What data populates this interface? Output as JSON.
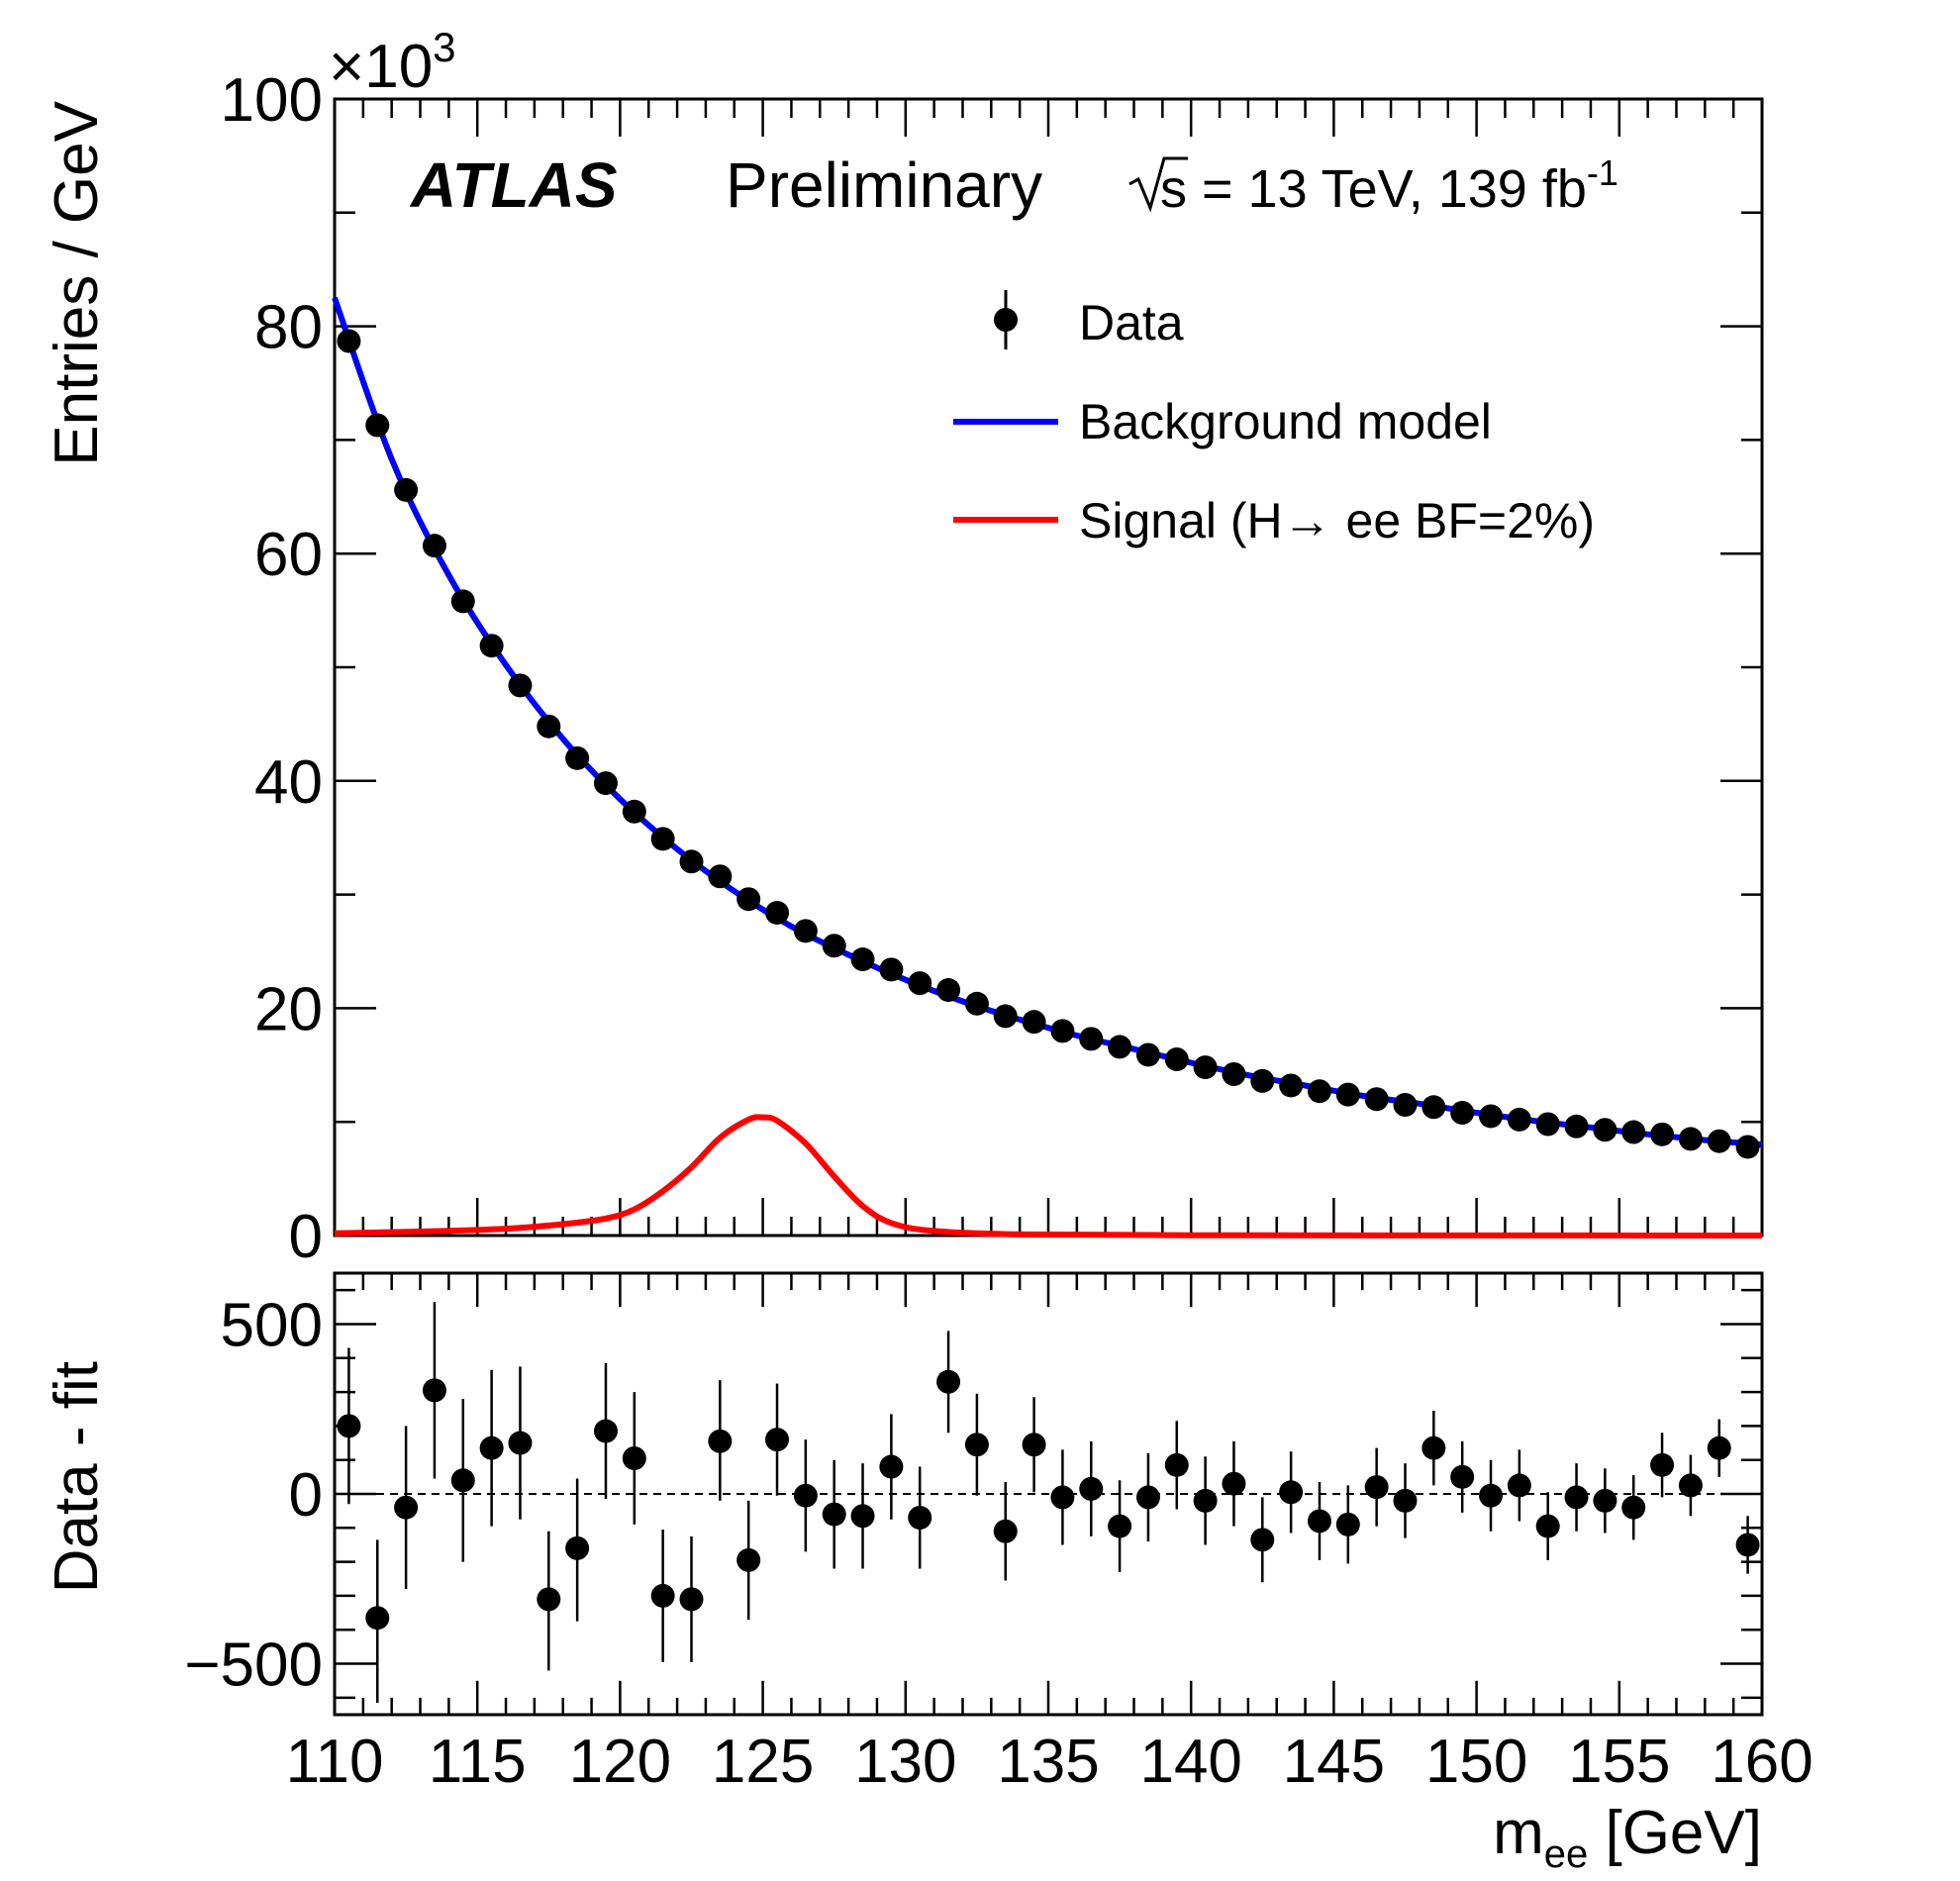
{
  "chart_data": {
    "type": "scatter",
    "experiment": "ATLAS",
    "status": "Preliminary",
    "energy_lumi_pre": "s = 13 TeV, 139 fb",
    "energy_lumi_exp": "-1",
    "x_axis": {
      "label_main": "m",
      "label_sub": "ee",
      "label_unit": " [GeV]",
      "range": [
        110,
        160
      ],
      "ticks": [
        "110",
        "115",
        "120",
        "125",
        "130",
        "135",
        "140",
        "145",
        "150",
        "155",
        "160"
      ]
    },
    "top_panel": {
      "ylabel": "Entries / GeV",
      "y_multiplier_base": "×10",
      "y_multiplier_exp": "3",
      "ylim": [
        0,
        100
      ],
      "y_ticks": [
        "0",
        "20",
        "40",
        "60",
        "80",
        "100"
      ],
      "legend": {
        "position": "top-right",
        "data_label": "Data",
        "background_label": "Background model",
        "signal_label": "Signal (H→ ee BF=2%)"
      },
      "colors": {
        "data": "#000000",
        "background": "#0000ff",
        "signal": "#ff0000"
      },
      "data": {
        "x": [
          110.5,
          111.5,
          112.5,
          113.5,
          114.5,
          115.5,
          116.5,
          117.5,
          118.5,
          119.5,
          120.5,
          121.5,
          122.5,
          123.5,
          124.5,
          125.5,
          126.5,
          127.5,
          128.5,
          129.5,
          130.5,
          131.5,
          132.5,
          133.5,
          134.5,
          135.5,
          136.5,
          137.5,
          138.5,
          139.5,
          140.5,
          141.5,
          142.5,
          143.5,
          144.5,
          145.5,
          146.5,
          147.5,
          148.5,
          149.5,
          150.5,
          151.5,
          152.5,
          153.5,
          154.5,
          155.5,
          156.5,
          157.5,
          158.5,
          159.5
        ],
        "y": [
          78.7,
          71.3,
          65.6,
          60.7,
          55.8,
          51.9,
          48.4,
          44.8,
          42.0,
          39.8,
          37.3,
          34.9,
          32.9,
          31.6,
          29.6,
          28.4,
          26.8,
          25.5,
          24.3,
          23.4,
          22.2,
          21.6,
          20.4,
          19.3,
          18.8,
          18.0,
          17.3,
          16.6,
          15.9,
          15.5,
          14.8,
          14.2,
          13.6,
          13.2,
          12.7,
          12.4,
          12.0,
          11.5,
          11.3,
          10.8,
          10.5,
          10.2,
          9.8,
          9.6,
          9.3,
          9.1,
          8.9,
          8.5,
          8.3,
          7.8
        ]
      },
      "background_model": {
        "x": [
          110,
          112,
          114,
          116,
          118,
          120,
          122,
          124,
          126,
          128,
          130,
          132,
          134,
          136,
          138,
          140,
          142,
          144,
          146,
          148,
          150,
          152,
          154,
          156,
          158,
          160
        ],
        "y": [
          82.5,
          68.3,
          58.1,
          50.2,
          43.7,
          38.4,
          34.0,
          30.3,
          27.2,
          24.7,
          22.5,
          20.6,
          19.0,
          17.6,
          16.4,
          15.2,
          14.1,
          13.2,
          12.3,
          11.6,
          10.8,
          10.1,
          9.5,
          8.9,
          8.4,
          8.0
        ]
      },
      "signal": {
        "x": [
          110,
          113,
          116,
          118,
          119.5,
          120.5,
          121.5,
          122.5,
          123.5,
          124.5,
          125,
          125.5,
          126.5,
          127.5,
          128.5,
          129.5,
          131,
          134,
          140,
          150,
          160
        ],
        "y": [
          0.2,
          0.35,
          0.6,
          1.0,
          1.5,
          2.3,
          3.9,
          6.0,
          8.6,
          10.2,
          10.4,
          10.1,
          8.1,
          5.2,
          2.6,
          1.1,
          0.4,
          0.1,
          0.03,
          0.01,
          0.0
        ]
      }
    },
    "bottom_panel": {
      "ylabel": "Data - fit",
      "ylim": [
        -650,
        650
      ],
      "y_ticks": [
        "−500",
        "0",
        "500"
      ],
      "reference_line": 0,
      "data": {
        "x": [
          110.5,
          111.5,
          112.5,
          113.5,
          114.5,
          115.5,
          116.5,
          117.5,
          118.5,
          119.5,
          120.5,
          121.5,
          122.5,
          123.5,
          124.5,
          125.5,
          126.5,
          127.5,
          128.5,
          129.5,
          130.5,
          131.5,
          132.5,
          133.5,
          134.5,
          135.5,
          136.5,
          137.5,
          138.5,
          139.5,
          140.5,
          141.5,
          142.5,
          143.5,
          144.5,
          145.5,
          146.5,
          147.5,
          148.5,
          149.5,
          150.5,
          151.5,
          152.5,
          153.5,
          154.5,
          155.5,
          156.5,
          157.5,
          158.5,
          159.5
        ],
        "y": [
          200,
          -365,
          -40,
          305,
          40,
          135,
          150,
          -310,
          -160,
          185,
          105,
          -300,
          -310,
          155,
          -195,
          160,
          -5,
          -60,
          -65,
          80,
          -70,
          330,
          145,
          -110,
          145,
          -10,
          15,
          -95,
          -10,
          85,
          -20,
          30,
          -135,
          5,
          -80,
          -90,
          20,
          -20,
          135,
          50,
          -5,
          25,
          -95,
          -10,
          -20,
          -40,
          85,
          25,
          135,
          -150
        ],
        "err_up": [
          230,
          230,
          240,
          260,
          240,
          230,
          225,
          200,
          205,
          200,
          195,
          195,
          185,
          180,
          175,
          165,
          165,
          160,
          155,
          155,
          150,
          150,
          150,
          145,
          140,
          140,
          140,
          135,
          130,
          130,
          130,
          125,
          125,
          120,
          115,
          115,
          115,
          110,
          110,
          105,
          105,
          105,
          100,
          100,
          95,
          95,
          95,
          90,
          85,
          85
        ],
        "err_down": [
          230,
          250,
          240,
          260,
          240,
          230,
          225,
          210,
          215,
          200,
          195,
          195,
          185,
          175,
          175,
          165,
          165,
          160,
          155,
          155,
          150,
          150,
          150,
          145,
          140,
          140,
          140,
          135,
          130,
          130,
          130,
          125,
          125,
          120,
          115,
          115,
          115,
          110,
          110,
          105,
          105,
          105,
          100,
          100,
          95,
          95,
          95,
          90,
          85,
          85
        ]
      }
    }
  }
}
